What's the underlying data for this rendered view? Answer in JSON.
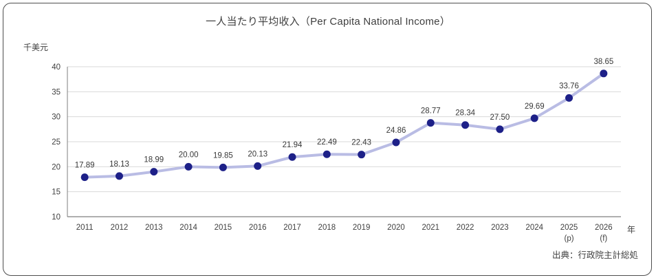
{
  "chart": {
    "title": "一人当たり平均收入（Per Capita National Income）",
    "y_axis_unit": "千美元",
    "x_axis_unit": "年",
    "source_note": "出典：行政院主計総処"
  },
  "chart_data": {
    "type": "line",
    "title": "一人当たり平均收入（Per Capita National Income）",
    "ylabel": "千美元",
    "xlabel": "年",
    "categories": [
      "2011",
      "2012",
      "2013",
      "2014",
      "2015",
      "2016",
      "2017",
      "2018",
      "2019",
      "2020",
      "2021",
      "2022",
      "2023",
      "2024",
      "2025",
      "2026"
    ],
    "category_sublabels": [
      "",
      "",
      "",
      "",
      "",
      "",
      "",
      "",
      "",
      "",
      "",
      "",
      "",
      "",
      "(p)",
      "(f)"
    ],
    "values": [
      17.89,
      18.13,
      18.99,
      20.0,
      19.85,
      20.13,
      21.94,
      22.49,
      22.43,
      24.86,
      28.77,
      28.34,
      27.5,
      29.69,
      33.76,
      38.65
    ],
    "ylim": [
      10,
      40
    ],
    "ytick_step": 5,
    "grid": true,
    "legend_position": "none",
    "data_labels": true,
    "source": "出典：行政院主計総処",
    "colors": {
      "line": "#b9bce4",
      "marker": "#1d2088",
      "grid": "#d9d9d9",
      "axis": "#7f7f7f",
      "text": "#404040",
      "label_text": "#383838",
      "border": "#4d4d4d"
    }
  }
}
